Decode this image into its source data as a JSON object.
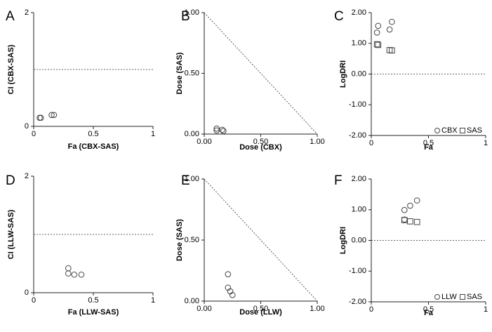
{
  "chart_data": [
    {
      "id": "A",
      "letter": "A",
      "type": "scatter",
      "xlabel": "Fa (CBX-SAS)",
      "ylabel": "CI (CBX-SAS)",
      "xlim": [
        0,
        1
      ],
      "ylim": [
        0,
        2
      ],
      "xticks": [
        {
          "v": 0,
          "label": "0"
        },
        {
          "v": 0.5,
          "label": "0.5"
        },
        {
          "v": 1,
          "label": "1"
        }
      ],
      "yticks": [
        {
          "v": 0,
          "label": "0"
        },
        {
          "v": 2,
          "label": "2"
        }
      ],
      "reference": {
        "kind": "hline",
        "y": 1
      },
      "series": [
        {
          "marker": "circle",
          "points": [
            [
              0.05,
              0.15
            ],
            [
              0.06,
              0.15
            ],
            [
              0.15,
              0.2
            ],
            [
              0.17,
              0.2
            ]
          ]
        }
      ]
    },
    {
      "id": "B",
      "letter": "B",
      "type": "scatter",
      "xlabel": "Dose (CBX)",
      "ylabel": "Dose (SAS)",
      "xlim": [
        0,
        1
      ],
      "ylim": [
        0,
        1
      ],
      "xticks": [
        {
          "v": 0,
          "label": "0.00"
        },
        {
          "v": 0.5,
          "label": "0.50"
        },
        {
          "v": 1,
          "label": "1.00"
        }
      ],
      "yticks": [
        {
          "v": 0,
          "label": "0.00"
        },
        {
          "v": 0.5,
          "label": "0.50"
        },
        {
          "v": 1,
          "label": "1.00"
        }
      ],
      "reference": {
        "kind": "diagonal"
      },
      "series": [
        {
          "marker": "circle",
          "points": [
            [
              0.11,
              0.045
            ],
            [
              0.11,
              0.03
            ],
            [
              0.16,
              0.035
            ],
            [
              0.17,
              0.025
            ]
          ]
        }
      ]
    },
    {
      "id": "C",
      "letter": "C",
      "type": "scatter",
      "xlabel": "Fa",
      "ylabel": "LogDRI",
      "xlim": [
        0,
        1
      ],
      "ylim": [
        -2,
        2
      ],
      "xticks": [
        {
          "v": 0,
          "label": "0"
        },
        {
          "v": 0.5,
          "label": "0.5"
        },
        {
          "v": 1,
          "label": "1"
        }
      ],
      "yticks": [
        {
          "v": 2,
          "label": "2.00"
        },
        {
          "v": 1,
          "label": "1.00"
        },
        {
          "v": 0,
          "label": "0.00"
        },
        {
          "v": -1,
          "label": "-1.00"
        },
        {
          "v": -2,
          "label": "-2.00"
        }
      ],
      "reference": {
        "kind": "hline",
        "y": 0
      },
      "series": [
        {
          "name": "CBX",
          "marker": "circle",
          "points": [
            [
              0.05,
              1.35
            ],
            [
              0.06,
              1.57
            ],
            [
              0.16,
              1.45
            ],
            [
              0.18,
              1.7
            ]
          ]
        },
        {
          "name": "SAS",
          "marker": "square",
          "points": [
            [
              0.05,
              0.97
            ],
            [
              0.06,
              0.95
            ],
            [
              0.16,
              0.78
            ],
            [
              0.18,
              0.77
            ]
          ]
        }
      ]
    },
    {
      "id": "D",
      "letter": "D",
      "type": "scatter",
      "xlabel": "Fa (LLW-SAS)",
      "ylabel": "CI (LLW-SAS)",
      "xlim": [
        0,
        1
      ],
      "ylim": [
        0,
        2
      ],
      "xticks": [
        {
          "v": 0,
          "label": "0"
        },
        {
          "v": 0.5,
          "label": "0.5"
        },
        {
          "v": 1,
          "label": "1"
        }
      ],
      "yticks": [
        {
          "v": 0,
          "label": "0"
        },
        {
          "v": 2,
          "label": "2"
        }
      ],
      "reference": {
        "kind": "hline",
        "y": 1
      },
      "series": [
        {
          "marker": "circle",
          "points": [
            [
              0.29,
              0.42
            ],
            [
              0.29,
              0.33
            ],
            [
              0.34,
              0.31
            ],
            [
              0.4,
              0.31
            ]
          ]
        }
      ]
    },
    {
      "id": "E",
      "letter": "E",
      "type": "scatter",
      "xlabel": "Dose (LLW)",
      "ylabel": "Dose (SAS)",
      "xlim": [
        0,
        1
      ],
      "ylim": [
        0,
        1
      ],
      "xticks": [
        {
          "v": 0,
          "label": "0.00"
        },
        {
          "v": 0.5,
          "label": "0.50"
        },
        {
          "v": 1,
          "label": "1.00"
        }
      ],
      "yticks": [
        {
          "v": 0,
          "label": "0.00"
        },
        {
          "v": 0.5,
          "label": "0.50"
        },
        {
          "v": 1,
          "label": "1.00"
        }
      ],
      "reference": {
        "kind": "diagonal"
      },
      "series": [
        {
          "marker": "circle",
          "points": [
            [
              0.21,
              0.22
            ],
            [
              0.21,
              0.11
            ],
            [
              0.23,
              0.08
            ],
            [
              0.25,
              0.05
            ]
          ]
        }
      ]
    },
    {
      "id": "F",
      "letter": "F",
      "type": "scatter",
      "xlabel": "Fa",
      "ylabel": "LogDRI",
      "xlim": [
        0,
        1
      ],
      "ylim": [
        -2,
        2
      ],
      "xticks": [
        {
          "v": 0,
          "label": "0"
        },
        {
          "v": 0.5,
          "label": "0.5"
        },
        {
          "v": 1,
          "label": "1"
        }
      ],
      "yticks": [
        {
          "v": 2,
          "label": "2.00"
        },
        {
          "v": 1,
          "label": "1.00"
        },
        {
          "v": 0,
          "label": "0.00"
        },
        {
          "v": -1,
          "label": "-1.00"
        },
        {
          "v": -2,
          "label": "-2.00"
        }
      ],
      "reference": {
        "kind": "hline",
        "y": 0
      },
      "series": [
        {
          "name": "LLW",
          "marker": "circle",
          "points": [
            [
              0.29,
              0.99
            ],
            [
              0.34,
              1.13
            ],
            [
              0.4,
              1.3
            ],
            [
              0.29,
              0.68
            ]
          ]
        },
        {
          "name": "SAS",
          "marker": "square",
          "points": [
            [
              0.29,
              0.66
            ],
            [
              0.34,
              0.62
            ],
            [
              0.4,
              0.6
            ]
          ]
        }
      ]
    }
  ]
}
